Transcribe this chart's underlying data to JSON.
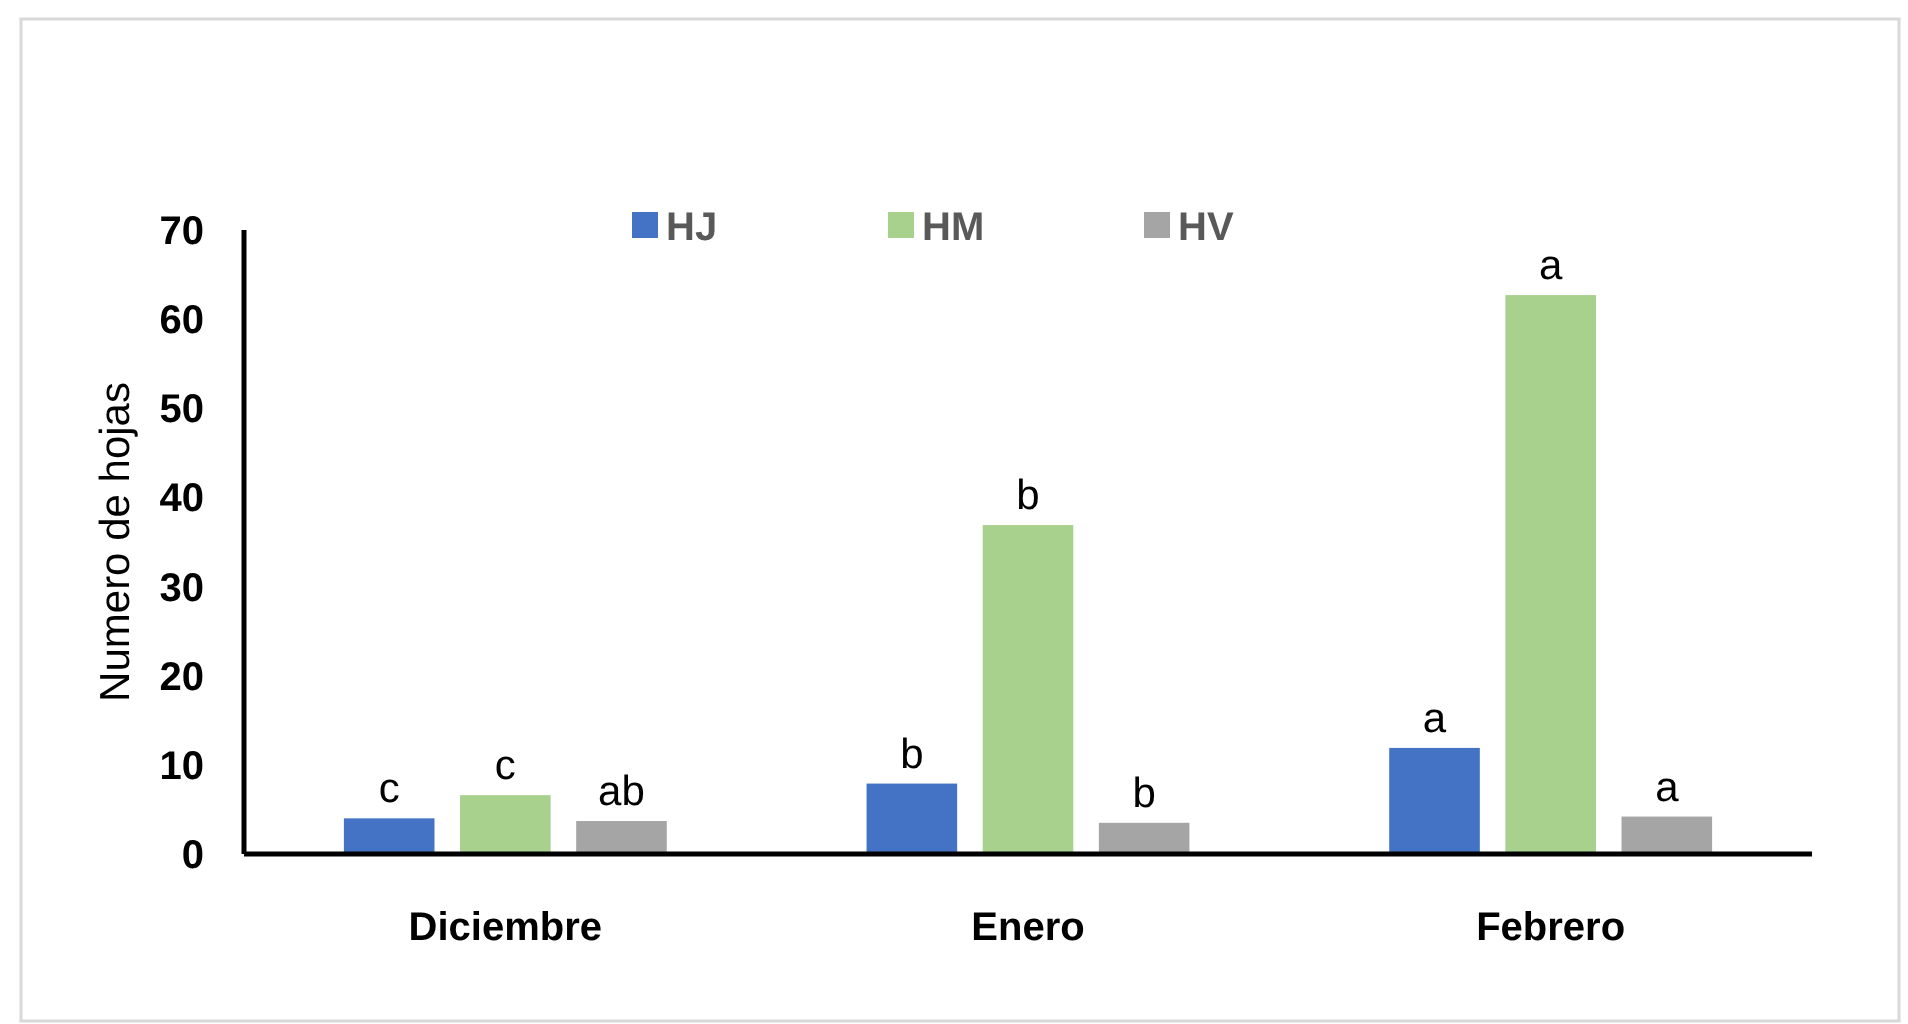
{
  "chart_data": {
    "type": "bar",
    "ylabel": "Numero de hojas",
    "categories": [
      "Diciembre",
      "Enero",
      "Febrero"
    ],
    "series": [
      {
        "name": "HJ",
        "color": "#4472c4",
        "values": [
          4.0,
          7.9,
          11.9
        ],
        "value_labels": [
          "c",
          "b",
          "a"
        ]
      },
      {
        "name": "HM",
        "color": "#a9d18e",
        "values": [
          6.6,
          36.9,
          62.7
        ],
        "value_labels": [
          "c",
          "b",
          "a"
        ]
      },
      {
        "name": "HV",
        "color": "#a5a5a5",
        "values": [
          3.7,
          3.5,
          4.2
        ],
        "value_labels": [
          "ab",
          "b",
          "a"
        ]
      }
    ],
    "ylim": [
      0,
      70
    ],
    "yticks": [
      0,
      10,
      20,
      30,
      40,
      50,
      60,
      70
    ],
    "grid": false,
    "legend": "top"
  }
}
